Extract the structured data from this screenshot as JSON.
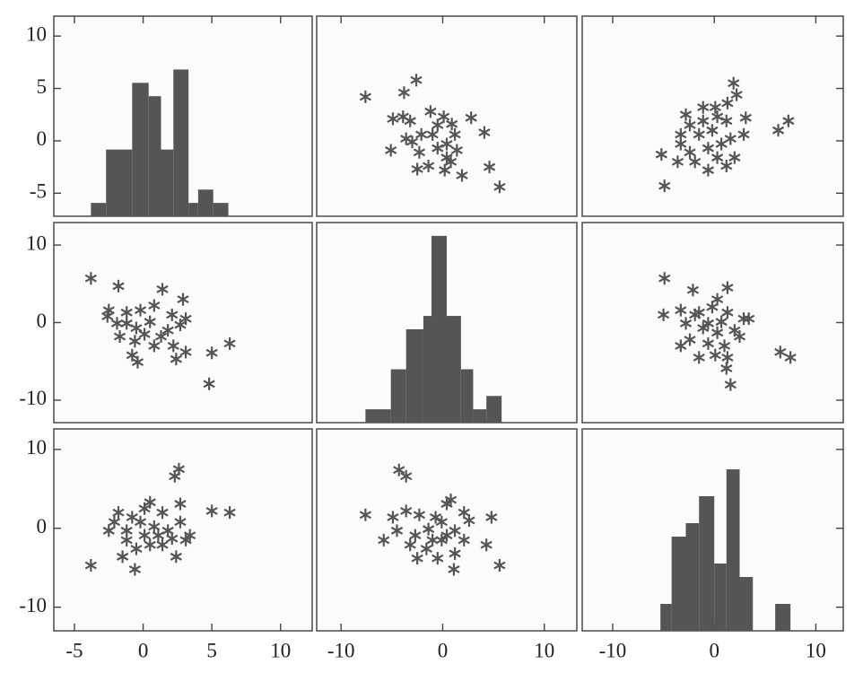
{
  "chart_data": {
    "type": "scatter_matrix",
    "marker_color": "#555555",
    "x_axes": [
      {
        "xlim": [
          -6.5,
          12.3
        ],
        "xticks": [
          -5,
          0,
          5,
          10
        ]
      },
      {
        "xlim": [
          -12.4,
          13.2
        ],
        "xticks": [
          -10,
          0,
          10
        ]
      },
      {
        "xlim": [
          -13,
          12.7
        ],
        "xticks": [
          -10,
          0,
          10
        ]
      }
    ],
    "y_axes": [
      {
        "ylim": [
          -7.2,
          11.9
        ],
        "yticks": [
          -5,
          0,
          5,
          10
        ]
      },
      {
        "ylim": [
          -12.9,
          12.9
        ],
        "yticks": [
          -10,
          0,
          10
        ]
      },
      {
        "ylim": [
          -13,
          12.6
        ],
        "yticks": [
          -10,
          0,
          10
        ]
      }
    ],
    "panels": [
      {
        "type": "histogram",
        "bins": [
          -3.8,
          -2.7,
          -0.8,
          0.4,
          1.3,
          2.2,
          3.3,
          4.0,
          5.1,
          6.2
        ],
        "counts": [
          1,
          5,
          10,
          9,
          5,
          11,
          1,
          2,
          1
        ],
        "count_lim": [
          0,
          15
        ]
      },
      {
        "type": "scatter",
        "x": [
          -7.6,
          -3.8,
          -2.6,
          -3.9,
          -4.9,
          -3.2,
          -1.2,
          0.1,
          0.9,
          2.8,
          4.1,
          -5.1,
          -3.0,
          -2.3,
          -1.0,
          -0.5,
          0.4,
          1.4,
          0.8,
          -1.4,
          -2.5,
          0.2,
          1.9,
          4.6,
          5.6,
          -2.1,
          -3.6,
          -0.5,
          1.2,
          0.4
        ],
        "y": [
          4.2,
          4.6,
          5.8,
          2.3,
          2.1,
          1.9,
          2.8,
          2.3,
          1.6,
          2.2,
          0.8,
          -0.9,
          -0.1,
          -1.1,
          0.6,
          -0.7,
          -0.3,
          -0.9,
          -2.0,
          -2.4,
          -2.7,
          -2.8,
          -3.3,
          -2.5,
          -4.4,
          0.6,
          0.2,
          1.5,
          0.6,
          -1.6
        ]
      },
      {
        "type": "scatter",
        "x": [
          1.9,
          2.2,
          1.3,
          0.3,
          -1.1,
          -2.4,
          -3.3,
          -1.5,
          -0.2,
          1.2,
          3.1,
          6.3,
          7.3,
          -5.2,
          -4.9,
          -3.6,
          -2.4,
          -0.6,
          0.7,
          1.6,
          2.0,
          1.2,
          -0.6,
          -1.9,
          -3.3,
          0.1,
          -1.1,
          2.9,
          -2.8,
          0.3
        ],
        "y": [
          5.5,
          4.4,
          3.6,
          2.3,
          1.9,
          1.5,
          0.6,
          0.6,
          1.0,
          1.9,
          2.2,
          1.0,
          1.9,
          -1.3,
          -4.3,
          -2.0,
          -1.1,
          -0.7,
          -0.3,
          0.2,
          -1.6,
          -2.4,
          -2.8,
          -2.0,
          -0.3,
          3.2,
          3.2,
          0.6,
          2.5,
          -1.6
        ]
      },
      {
        "type": "scatter",
        "x": [
          -3.8,
          -1.8,
          1.4,
          2.9,
          -2.5,
          -1.2,
          -0.2,
          0.8,
          2.1,
          3.1,
          -1.9,
          -0.5,
          0.5,
          1.8,
          2.7,
          -1.7,
          -0.6,
          0.8,
          2.2,
          3.1,
          -0.4,
          5.0,
          6.3,
          4.8,
          -0.8,
          -2.6,
          1.3,
          0.1,
          -1.2,
          2.4
        ],
        "y": [
          5.7,
          4.7,
          4.3,
          3.0,
          1.6,
          1.3,
          1.6,
          2.2,
          1.0,
          0.5,
          -0.1,
          -0.7,
          0.1,
          -1.0,
          -0.3,
          -1.8,
          -2.4,
          -3.0,
          -3.0,
          -3.8,
          -5.1,
          -3.9,
          -2.7,
          -7.9,
          -4.2,
          0.8,
          -1.8,
          -1.5,
          -0.1,
          -4.7
        ]
      },
      {
        "type": "histogram",
        "bins": [
          -7.6,
          -5.1,
          -3.6,
          -1.9,
          -1.1,
          0.4,
          1.8,
          3.0,
          4.3,
          5.8
        ],
        "counts": [
          1,
          4,
          7,
          8,
          14,
          8,
          4,
          1,
          2
        ],
        "count_lim": [
          0,
          15
        ]
      },
      {
        "type": "scatter",
        "x": [
          -4.9,
          -2.1,
          1.3,
          0.3,
          -5.0,
          -3.3,
          -1.5,
          -0.2,
          1.3,
          2.9,
          -2.8,
          -1.1,
          0.7,
          2.0,
          3.4,
          -2.4,
          -0.6,
          1.0,
          2.5,
          -1.5,
          1.3,
          6.5,
          7.5,
          1.6,
          -3.3,
          0.3,
          -0.6,
          -1.9,
          1.2,
          0.1
        ],
        "y": [
          5.7,
          4.2,
          4.5,
          3.0,
          1.0,
          1.6,
          1.3,
          2.0,
          1.3,
          0.5,
          -0.1,
          -0.7,
          0.1,
          -1.0,
          0.5,
          -2.2,
          -2.7,
          -3.0,
          -1.8,
          -4.5,
          -4.5,
          -3.8,
          -4.5,
          -8.0,
          -3.0,
          -1.3,
          -0.1,
          1.0,
          -5.9,
          -4.2
        ]
      },
      {
        "type": "scatter",
        "x": [
          2.3,
          2.6,
          -3.8,
          -1.8,
          -0.8,
          0.1,
          0.5,
          1.4,
          2.7,
          5.0,
          6.3,
          -2.5,
          -1.2,
          -0.2,
          0.8,
          1.8,
          2.7,
          3.4,
          -1.5,
          -0.5,
          -0.6,
          0.5,
          1.4,
          2.4,
          3.1,
          -2.1,
          -1.2,
          1.1,
          2.1,
          0.1
        ],
        "y": [
          6.6,
          7.5,
          -4.7,
          2.0,
          1.4,
          2.5,
          3.3,
          2.0,
          3.1,
          2.2,
          2.0,
          -0.3,
          -0.3,
          0.8,
          0.2,
          -0.3,
          0.8,
          -0.9,
          -3.6,
          -2.6,
          -5.2,
          -2.1,
          -2.1,
          -3.6,
          -1.5,
          0.8,
          -1.5,
          -0.9,
          -1.3,
          -0.9
        ]
      },
      {
        "type": "scatter",
        "x": [
          -4.3,
          -3.6,
          -7.6,
          -4.9,
          -3.6,
          -2.3,
          -0.7,
          0.4,
          0.8,
          2.1,
          4.8,
          -4.5,
          -2.7,
          -1.4,
          -0.1,
          1.2,
          2.6,
          -3.2,
          -1.6,
          -0.1,
          1.2,
          -2.5,
          -0.5,
          1.1,
          4.3,
          5.6,
          -5.8,
          0.4,
          -1.0,
          2.1
        ],
        "y": [
          7.4,
          6.6,
          1.7,
          1.4,
          2.2,
          1.7,
          1.4,
          3.1,
          3.6,
          2.0,
          1.4,
          -0.3,
          -0.9,
          -0.1,
          0.8,
          -0.3,
          1.0,
          -2.1,
          -2.6,
          -1.5,
          -3.2,
          -3.8,
          -3.8,
          -5.2,
          -2.1,
          -4.7,
          -1.5,
          -0.9,
          -1.5,
          -1.5
        ]
      },
      {
        "type": "histogram",
        "bins": [
          -5.3,
          -4.2,
          -2.8,
          -1.5,
          0,
          1.2,
          2.5,
          3.8,
          6.0,
          7.5
        ],
        "counts": [
          2,
          7,
          8,
          10,
          5,
          12,
          4,
          0,
          2
        ],
        "count_lim": [
          0,
          15
        ]
      }
    ]
  }
}
